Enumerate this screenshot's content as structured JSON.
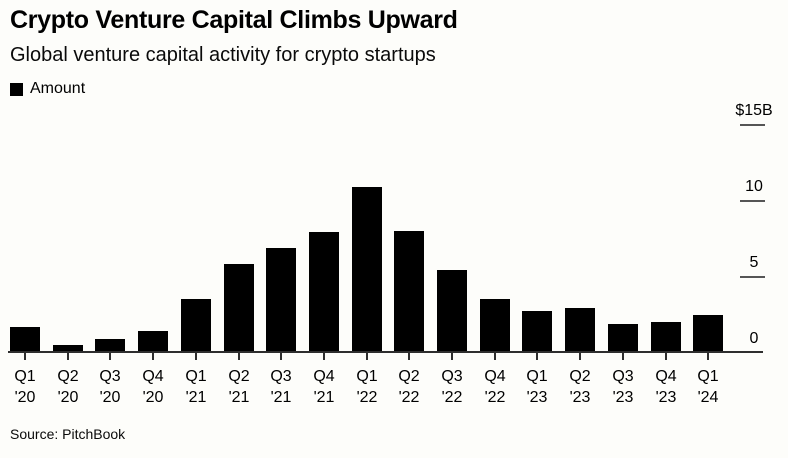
{
  "page": {
    "background_color": "#fdfdfa"
  },
  "header": {
    "title": "Crypto Venture Capital Climbs Upward",
    "subtitle": "Global venture capital activity for crypto startups"
  },
  "legend": {
    "label": "Amount",
    "swatch_color": "#000000"
  },
  "footer": {
    "source": "Source: PitchBook"
  },
  "chart_data": {
    "type": "bar",
    "title": "Crypto Venture Capital Climbs Upward",
    "subtitle": "Global venture capital activity for crypto startups",
    "legend_entries": [
      "Amount"
    ],
    "legend_position": "top-left",
    "unit": "billions USD",
    "categories": [
      "Q1 '20",
      "Q2 '20",
      "Q3 '20",
      "Q4 '20",
      "Q1 '21",
      "Q2 '21",
      "Q3 '21",
      "Q4 '21",
      "Q1 '22",
      "Q2 '22",
      "Q3 '22",
      "Q4 '22",
      "Q1 '23",
      "Q2 '23",
      "Q3 '23",
      "Q4 '23",
      "Q1 '24"
    ],
    "values": [
      1.6,
      0.4,
      0.8,
      1.3,
      3.4,
      5.7,
      6.8,
      7.8,
      10.8,
      7.9,
      5.3,
      3.4,
      2.6,
      2.8,
      1.8,
      1.9,
      2.4
    ],
    "ylim": [
      0,
      15
    ],
    "yticks": [
      {
        "label": "$15B",
        "value": 15
      },
      {
        "label": "10",
        "value": 10
      },
      {
        "label": "5",
        "value": 5
      },
      {
        "label": "0",
        "value": 0
      }
    ],
    "grid": false,
    "bar_color": "#000000",
    "axis_color": "#2e2e2e",
    "ytick_dash_color": "#555555",
    "source": "Source: PitchBook"
  }
}
